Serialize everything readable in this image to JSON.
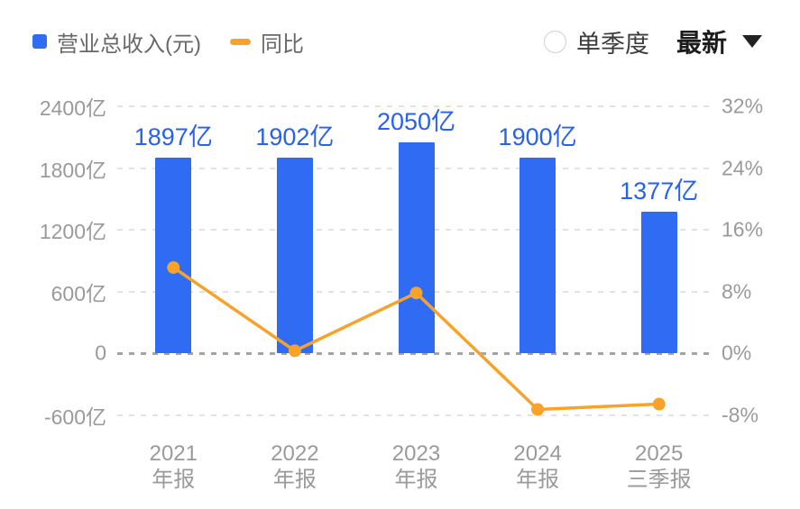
{
  "header": {
    "legend": [
      {
        "label": "营业总收入(元)",
        "marker": "square",
        "color": "#2f6bf3"
      },
      {
        "label": "同比",
        "marker": "dash",
        "color": "#f7a32b"
      }
    ],
    "controls": {
      "radio_label": "单季度",
      "radio_checked": false,
      "dropdown_value": "最新"
    }
  },
  "chart_data": {
    "type": "bar",
    "title": "",
    "categories": [
      [
        "2021",
        "年报"
      ],
      [
        "2022",
        "年报"
      ],
      [
        "2023",
        "年报"
      ],
      [
        "2024",
        "年报"
      ],
      [
        "2025",
        "三季报"
      ]
    ],
    "series": [
      {
        "name": "营业总收入(元)",
        "type": "bar",
        "axis": "left",
        "unit": "亿",
        "values": [
          1897,
          1902,
          2050,
          1900,
          1377
        ],
        "data_labels": [
          "1897亿",
          "1902亿",
          "2050亿",
          "1900亿",
          "1377亿"
        ],
        "color": "#2f6bf3",
        "label_color": "#2761ec"
      },
      {
        "name": "同比",
        "type": "line",
        "axis": "right",
        "unit": "%",
        "values": [
          11.1,
          0.3,
          7.8,
          -7.3,
          -6.6
        ],
        "color": "#f7a32b"
      }
    ],
    "left_axis": {
      "ticks": [
        "2400亿",
        "1800亿",
        "1200亿",
        "600亿",
        "0",
        "-600亿"
      ],
      "values": [
        2400,
        1800,
        1200,
        600,
        0,
        -600
      ],
      "range": [
        -600,
        2400
      ]
    },
    "right_axis": {
      "ticks": [
        "32%",
        "24%",
        "16%",
        "8%",
        "0%",
        "-8%"
      ],
      "values": [
        32,
        24,
        16,
        8,
        0,
        -8
      ],
      "range": [
        -8,
        32
      ]
    },
    "grid": {
      "dashed": true,
      "line_color": "#e2e2e2",
      "zero_line_color": "#a3a3a3"
    },
    "legend_position": "top-left"
  }
}
